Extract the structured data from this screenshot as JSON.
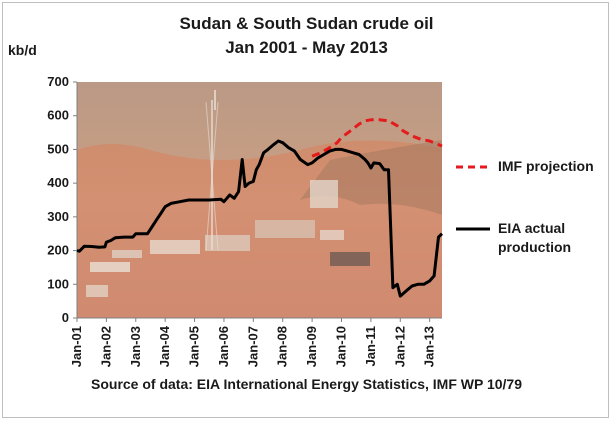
{
  "chart_data": {
    "type": "line",
    "title": "Sudan & South Sudan crude oil",
    "subtitle": "Jan 2001 - May 2013",
    "ylabel": "kb/d",
    "ylim": [
      0,
      700
    ],
    "xlim": [
      2001.0,
      2013.42
    ],
    "yticks": [
      0,
      100,
      200,
      300,
      400,
      500,
      600,
      700
    ],
    "xticks": [
      {
        "label": "Jan-01",
        "x": 2001.0
      },
      {
        "label": "Jan-02",
        "x": 2002.0
      },
      {
        "label": "Jan-03",
        "x": 2003.0
      },
      {
        "label": "Jan-04",
        "x": 2004.0
      },
      {
        "label": "Jan-05",
        "x": 2005.0
      },
      {
        "label": "Jan-06",
        "x": 2006.0
      },
      {
        "label": "Jan-07",
        "x": 2007.0
      },
      {
        "label": "Jan-08",
        "x": 2008.0
      },
      {
        "label": "Jan-09",
        "x": 2009.0
      },
      {
        "label": "Jan-10",
        "x": 2010.0
      },
      {
        "label": "Jan-11",
        "x": 2011.0
      },
      {
        "label": "Jan-12",
        "x": 2012.0
      },
      {
        "label": "Jan-13",
        "x": 2013.0
      }
    ],
    "grid": false,
    "legend_position": "right",
    "background": "photograph of an oil field in desert terrain",
    "series": [
      {
        "name": "EIA actual production",
        "color": "#000000",
        "style": "solid",
        "points": [
          [
            2001.0,
            200
          ],
          [
            2001.08,
            198
          ],
          [
            2001.25,
            213
          ],
          [
            2001.5,
            212
          ],
          [
            2001.75,
            210
          ],
          [
            2001.95,
            211
          ],
          [
            2002.0,
            225
          ],
          [
            2002.15,
            230
          ],
          [
            2002.3,
            238
          ],
          [
            2002.6,
            240
          ],
          [
            2002.9,
            240
          ],
          [
            2003.0,
            250
          ],
          [
            2003.4,
            250
          ],
          [
            2003.55,
            270
          ],
          [
            2003.7,
            290
          ],
          [
            2003.85,
            310
          ],
          [
            2004.0,
            330
          ],
          [
            2004.2,
            340
          ],
          [
            2004.5,
            345
          ],
          [
            2004.8,
            350
          ],
          [
            2005.0,
            350
          ],
          [
            2005.5,
            350
          ],
          [
            2005.9,
            352
          ],
          [
            2006.0,
            345
          ],
          [
            2006.2,
            365
          ],
          [
            2006.35,
            355
          ],
          [
            2006.5,
            375
          ],
          [
            2006.62,
            470
          ],
          [
            2006.72,
            390
          ],
          [
            2006.85,
            400
          ],
          [
            2007.0,
            405
          ],
          [
            2007.1,
            440
          ],
          [
            2007.2,
            455
          ],
          [
            2007.35,
            490
          ],
          [
            2007.5,
            500
          ],
          [
            2007.7,
            515
          ],
          [
            2007.85,
            525
          ],
          [
            2008.0,
            520
          ],
          [
            2008.2,
            505
          ],
          [
            2008.4,
            495
          ],
          [
            2008.6,
            470
          ],
          [
            2008.85,
            455
          ],
          [
            2009.0,
            460
          ],
          [
            2009.2,
            475
          ],
          [
            2009.4,
            485
          ],
          [
            2009.6,
            495
          ],
          [
            2009.8,
            500
          ],
          [
            2010.0,
            500
          ],
          [
            2010.2,
            495
          ],
          [
            2010.4,
            490
          ],
          [
            2010.6,
            485
          ],
          [
            2010.8,
            470
          ],
          [
            2010.9,
            460
          ],
          [
            2011.0,
            445
          ],
          [
            2011.1,
            460
          ],
          [
            2011.3,
            458
          ],
          [
            2011.45,
            440
          ],
          [
            2011.6,
            440
          ],
          [
            2011.75,
            90
          ],
          [
            2011.9,
            100
          ],
          [
            2012.0,
            65
          ],
          [
            2012.2,
            80
          ],
          [
            2012.4,
            95
          ],
          [
            2012.6,
            100
          ],
          [
            2012.8,
            100
          ],
          [
            2013.0,
            110
          ],
          [
            2013.15,
            125
          ],
          [
            2013.3,
            240
          ],
          [
            2013.42,
            250
          ]
        ]
      },
      {
        "name": "IMF projection",
        "color": "#e41a1c",
        "style": "dashed",
        "points": [
          [
            2009.0,
            480
          ],
          [
            2009.3,
            490
          ],
          [
            2009.6,
            505
          ],
          [
            2009.85,
            520
          ],
          [
            2010.0,
            535
          ],
          [
            2010.3,
            555
          ],
          [
            2010.6,
            575
          ],
          [
            2010.8,
            585
          ],
          [
            2011.0,
            588
          ],
          [
            2011.3,
            588
          ],
          [
            2011.6,
            585
          ],
          [
            2011.9,
            570
          ],
          [
            2012.1,
            555
          ],
          [
            2012.4,
            540
          ],
          [
            2012.7,
            530
          ],
          [
            2013.0,
            525
          ],
          [
            2013.2,
            518
          ],
          [
            2013.42,
            510
          ]
        ]
      }
    ],
    "source": "Source of data: EIA International Energy Statistics, IMF WP 10/79"
  },
  "legend": {
    "imf": [
      "IMF projection"
    ],
    "eia": [
      "EIA actual",
      "production"
    ]
  }
}
